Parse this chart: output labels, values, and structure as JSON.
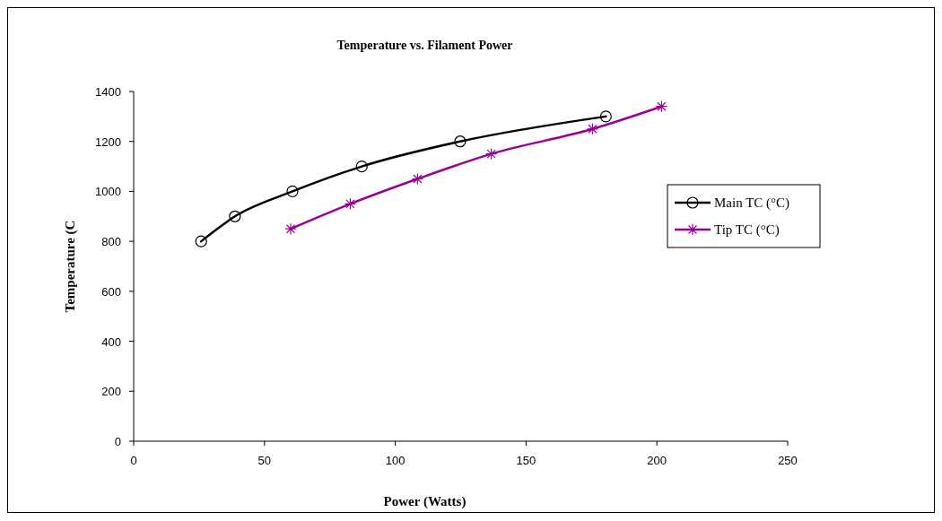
{
  "chart_data": {
    "type": "line",
    "title": "Temperature vs. Filament Power",
    "xlabel": "Power (Watts)",
    "ylabel": "Temperature (C",
    "xlim": [
      0,
      250
    ],
    "xticks": [
      0,
      50,
      100,
      150,
      200,
      250
    ],
    "ylim": [
      0,
      1400
    ],
    "yticks": [
      0,
      200,
      400,
      600,
      800,
      1000,
      1200,
      1400
    ],
    "grid": false,
    "legend": "right",
    "series": [
      {
        "name": "Main TC (°C)",
        "color": "#000000",
        "marker": "circle",
        "x": [
          25.8,
          38.7,
          60.7,
          87.2,
          124.8,
          180.5
        ],
        "values": [
          800,
          900,
          1000,
          1100,
          1200,
          1300
        ]
      },
      {
        "name": "Tip TC (°C)",
        "color": "#990099",
        "marker": "cross",
        "x": [
          60,
          82.8,
          108.5,
          136.7,
          175.4,
          201.8
        ],
        "values": [
          850,
          950,
          1050,
          1150,
          1250,
          1340
        ]
      }
    ]
  }
}
